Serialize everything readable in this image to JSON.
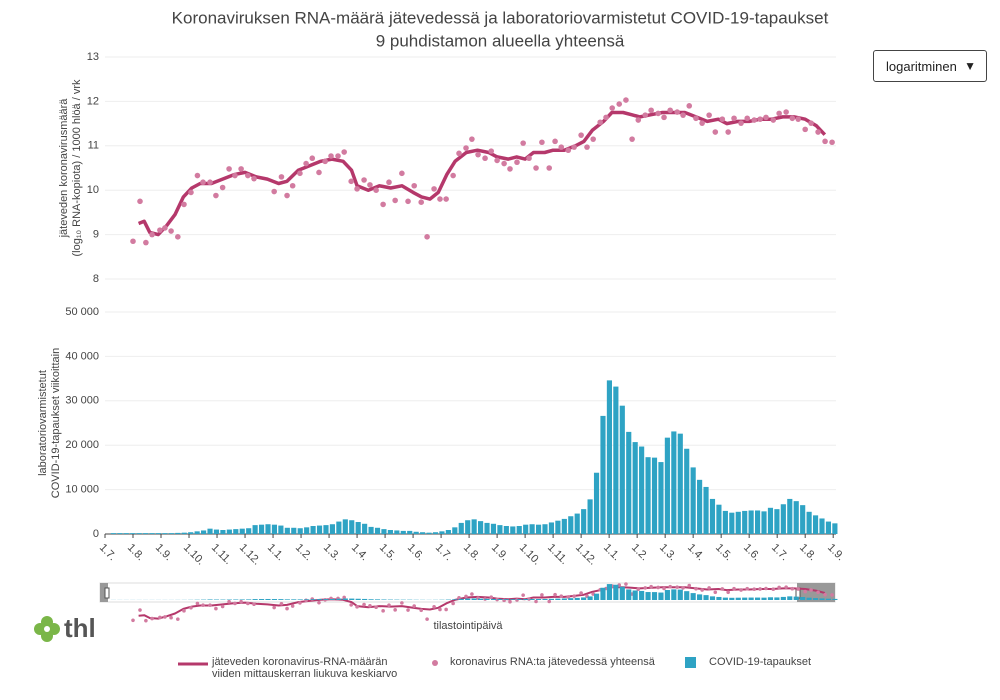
{
  "chart_data": [
    {
      "type": "line",
      "title": "Koronaviruksen RNA-määrä jätevedessä ja laboratoriovarmistetut COVID-19-tapaukset",
      "subtitle": "9 puhdistamon alueella yhteensä",
      "ylabel": [
        "jäteveden koronavirusmäärä",
        "(log₁₀ RNA-kopiota) / 1000 hlöä / vrk"
      ],
      "ylim": [
        8,
        13
      ],
      "yticks": [
        8,
        9,
        10,
        11,
        12,
        13
      ],
      "xlim": [
        0,
        26.1
      ],
      "grid": true,
      "series": [
        {
          "name": "jäteveden koronavirus-RNA-määrän viiden mittauskerran liukuva keskiarvo",
          "color": "#b5386b",
          "style": "line",
          "x": [
            1.2,
            1.4,
            1.6,
            1.9,
            2.2,
            2.5,
            2.8,
            3.1,
            3.4,
            3.8,
            4.2,
            4.6,
            5.0,
            5.4,
            5.8,
            6.2,
            6.5,
            6.9,
            7.3,
            7.7,
            8.1,
            8.5,
            8.8,
            9.0,
            9.4,
            9.8,
            10.2,
            10.6,
            11.0,
            11.3,
            11.6,
            11.9,
            12.2,
            12.5,
            12.9,
            13.3,
            13.7,
            14.0,
            14.4,
            14.7,
            15.0,
            15.3,
            15.7,
            16.0,
            16.4,
            16.8,
            17.1,
            17.4,
            17.8,
            18.1,
            18.5,
            18.8,
            19.1,
            19.5,
            19.9,
            20.3,
            20.7,
            21.1,
            21.5,
            21.9,
            22.2,
            22.6,
            23.0,
            23.4,
            23.8,
            24.2,
            24.6,
            25.0,
            25.4,
            25.7
          ],
          "values": [
            9.25,
            9.3,
            9.05,
            9.0,
            9.2,
            9.45,
            9.85,
            10.05,
            10.15,
            10.15,
            10.25,
            10.35,
            10.4,
            10.3,
            10.25,
            10.15,
            10.2,
            10.45,
            10.55,
            10.65,
            10.7,
            10.65,
            10.45,
            10.1,
            10.0,
            10.1,
            10.05,
            10.1,
            9.95,
            9.85,
            9.8,
            9.95,
            10.35,
            10.65,
            10.85,
            10.9,
            10.85,
            10.75,
            10.7,
            10.75,
            10.7,
            10.85,
            10.85,
            10.9,
            10.9,
            11.0,
            11.1,
            11.35,
            11.55,
            11.75,
            11.75,
            11.7,
            11.65,
            11.7,
            11.75,
            11.75,
            11.75,
            11.65,
            11.55,
            11.6,
            11.5,
            11.55,
            11.55,
            11.6,
            11.6,
            11.65,
            11.65,
            11.6,
            11.45,
            11.25
          ]
        },
        {
          "name": "koronavirus RNA:ta jätevedessä yhteensä",
          "color": "#d27ba0",
          "style": "markers",
          "x": [
            1.0,
            1.25,
            1.46,
            1.68,
            1.96,
            2.14,
            2.36,
            2.6,
            2.82,
            3.07,
            3.3,
            3.5,
            3.75,
            3.96,
            4.2,
            4.43,
            4.64,
            4.86,
            5.1,
            5.32,
            6.04,
            6.3,
            6.5,
            6.7,
            6.96,
            7.18,
            7.4,
            7.64,
            7.86,
            8.07,
            8.32,
            8.54,
            8.79,
            9.0,
            9.25,
            9.46,
            9.68,
            9.93,
            10.14,
            10.36,
            10.6,
            10.82,
            11.04,
            11.29,
            11.5,
            11.75,
            11.96,
            12.18,
            12.43,
            12.64,
            12.89,
            13.1,
            13.32,
            13.57,
            13.79,
            14.0,
            14.25,
            14.46,
            14.71,
            14.93,
            15.14,
            15.39,
            15.6,
            15.86,
            16.07,
            16.29,
            16.54,
            16.75,
            17.0,
            17.21,
            17.43,
            17.68,
            17.89,
            18.11,
            18.36,
            18.6,
            18.82,
            19.04,
            19.29,
            19.5,
            19.75,
            19.96,
            20.18,
            20.43,
            20.64,
            20.86,
            21.1,
            21.32,
            21.57,
            21.79,
            22.04,
            22.25,
            22.46,
            22.71,
            22.93,
            23.18,
            23.39,
            23.6,
            23.86,
            24.07,
            24.32,
            24.54,
            24.75,
            25.0,
            25.21,
            25.46,
            25.71,
            25.96
          ],
          "values": [
            8.85,
            9.75,
            8.82,
            9.0,
            9.1,
            9.15,
            9.08,
            8.95,
            9.68,
            9.95,
            10.33,
            10.18,
            10.18,
            9.88,
            10.06,
            10.48,
            10.33,
            10.48,
            10.33,
            10.26,
            9.97,
            10.3,
            9.88,
            10.1,
            10.38,
            10.6,
            10.72,
            10.4,
            10.65,
            10.77,
            10.77,
            10.86,
            10.2,
            10.03,
            10.23,
            10.12,
            10.0,
            9.68,
            10.18,
            9.77,
            10.38,
            9.75,
            10.1,
            9.73,
            8.95,
            10.03,
            9.8,
            9.8,
            10.33,
            10.83,
            10.95,
            11.15,
            10.8,
            10.72,
            10.88,
            10.67,
            10.6,
            10.48,
            10.63,
            11.06,
            10.72,
            10.5,
            11.08,
            10.5,
            11.1,
            10.97,
            10.9,
            10.97,
            11.24,
            10.97,
            11.15,
            11.53,
            11.64,
            11.85,
            11.94,
            12.03,
            11.15,
            11.58,
            11.69,
            11.8,
            11.73,
            11.64,
            11.8,
            11.76,
            11.69,
            11.9,
            11.62,
            11.51,
            11.69,
            11.31,
            11.6,
            11.31,
            11.62,
            11.51,
            11.62,
            11.58,
            11.6,
            11.64,
            11.58,
            11.73,
            11.76,
            11.62,
            11.6,
            11.37,
            11.51,
            11.31,
            11.1,
            11.08
          ]
        }
      ]
    },
    {
      "type": "bar",
      "ylabel": [
        "laboratoriovarmistetut",
        "COVID-19-tapaukset viikoittain"
      ],
      "xlabel": "tilastointipäivä",
      "ylim": [
        0,
        50000
      ],
      "yticks": [
        0,
        {
          "value": 10000,
          "label": "10 000"
        },
        {
          "value": 20000,
          "label": "20 000"
        },
        {
          "value": 30000,
          "label": "30 000"
        },
        {
          "value": 40000,
          "label": "40 000"
        },
        {
          "value": 50000,
          "label": "50 000"
        }
      ],
      "xlim": [
        0,
        26.1
      ],
      "xticks": [
        {
          "value": 0,
          "label": "1.7."
        },
        {
          "value": 1,
          "label": "1.8."
        },
        {
          "value": 2,
          "label": "1.9."
        },
        {
          "value": 3,
          "label": "1.10."
        },
        {
          "value": 4,
          "label": "1.11."
        },
        {
          "value": 5,
          "label": "1.12."
        },
        {
          "value": 6,
          "label": "1.1."
        },
        {
          "value": 7,
          "label": "1.2."
        },
        {
          "value": 8,
          "label": "1.3."
        },
        {
          "value": 9,
          "label": "1.4."
        },
        {
          "value": 10,
          "label": "1.5."
        },
        {
          "value": 11,
          "label": "1.6."
        },
        {
          "value": 12,
          "label": "1.7."
        },
        {
          "value": 13,
          "label": "1.8."
        },
        {
          "value": 14,
          "label": "1.9."
        },
        {
          "value": 15,
          "label": "1.10."
        },
        {
          "value": 16,
          "label": "1.11."
        },
        {
          "value": 17,
          "label": "1.12."
        },
        {
          "value": 18,
          "label": "1.1."
        },
        {
          "value": 19,
          "label": "1.2."
        },
        {
          "value": 20,
          "label": "1.3."
        },
        {
          "value": 21,
          "label": "1.4."
        },
        {
          "value": 22,
          "label": "1.5."
        },
        {
          "value": 23,
          "label": "1.6."
        },
        {
          "value": 24,
          "label": "1.7."
        },
        {
          "value": 25,
          "label": "1.8."
        },
        {
          "value": 26,
          "label": "1.9."
        }
      ],
      "grid": true,
      "series": [
        {
          "name": "COVID-19-tapaukset",
          "color": "#2ea3c4",
          "x": [
            0.3,
            0.53,
            0.76,
            0.99,
            1.22,
            1.45,
            1.68,
            1.91,
            2.14,
            2.37,
            2.6,
            2.83,
            3.06,
            3.29,
            3.52,
            3.75,
            3.98,
            4.21,
            4.44,
            4.67,
            4.9,
            5.13,
            5.36,
            5.59,
            5.82,
            6.05,
            6.28,
            6.51,
            6.74,
            6.97,
            7.2,
            7.43,
            7.66,
            7.89,
            8.12,
            8.35,
            8.58,
            8.81,
            9.04,
            9.27,
            9.5,
            9.73,
            9.96,
            10.19,
            10.42,
            10.65,
            10.88,
            11.11,
            11.34,
            11.57,
            11.8,
            12.03,
            12.26,
            12.49,
            12.72,
            12.95,
            13.18,
            13.41,
            13.64,
            13.87,
            14.1,
            14.33,
            14.56,
            14.79,
            15.02,
            15.25,
            15.48,
            15.71,
            15.94,
            16.17,
            16.4,
            16.63,
            16.86,
            17.09,
            17.32,
            17.55,
            17.78,
            18.01,
            18.24,
            18.47,
            18.7,
            18.93,
            19.16,
            19.39,
            19.62,
            19.85,
            20.08,
            20.31,
            20.54,
            20.77,
            21.0,
            21.23,
            21.46,
            21.69,
            21.92,
            22.15,
            22.38,
            22.61,
            22.84,
            23.07,
            23.3,
            23.53,
            23.76,
            23.99,
            24.22,
            24.45,
            24.68,
            24.91,
            25.14,
            25.37,
            25.6,
            25.83,
            26.06
          ],
          "values": [
            200,
            200,
            200,
            200,
            200,
            200,
            200,
            200,
            200,
            200,
            250,
            300,
            400,
            600,
            800,
            1200,
            1000,
            900,
            1000,
            1100,
            1200,
            1300,
            2000,
            2100,
            2200,
            2100,
            1900,
            1400,
            1400,
            1300,
            1500,
            1800,
            1900,
            2000,
            2200,
            2800,
            3300,
            3100,
            2700,
            2300,
            1600,
            1400,
            1100,
            900,
            800,
            700,
            700,
            500,
            400,
            300,
            400,
            600,
            900,
            1500,
            2500,
            3100,
            3300,
            2900,
            2500,
            2300,
            2000,
            1800,
            1700,
            1800,
            2100,
            2200,
            2100,
            2200,
            2600,
            3000,
            3400,
            4000,
            4600,
            5600,
            7800,
            13800,
            26600,
            34600,
            33200,
            28900,
            23000,
            20700,
            19700,
            17300,
            17200,
            16200,
            21700,
            23100,
            22600,
            19200,
            15000,
            12200,
            10600,
            7900,
            6600,
            5200,
            4800,
            5000,
            5200,
            5300,
            5300,
            5100,
            5900,
            5600,
            6700,
            7900,
            7400,
            6500,
            5000,
            4200,
            3500,
            2800,
            2400
          ]
        }
      ]
    }
  ],
  "dropdown": "logaritminen",
  "logo": "thl"
}
